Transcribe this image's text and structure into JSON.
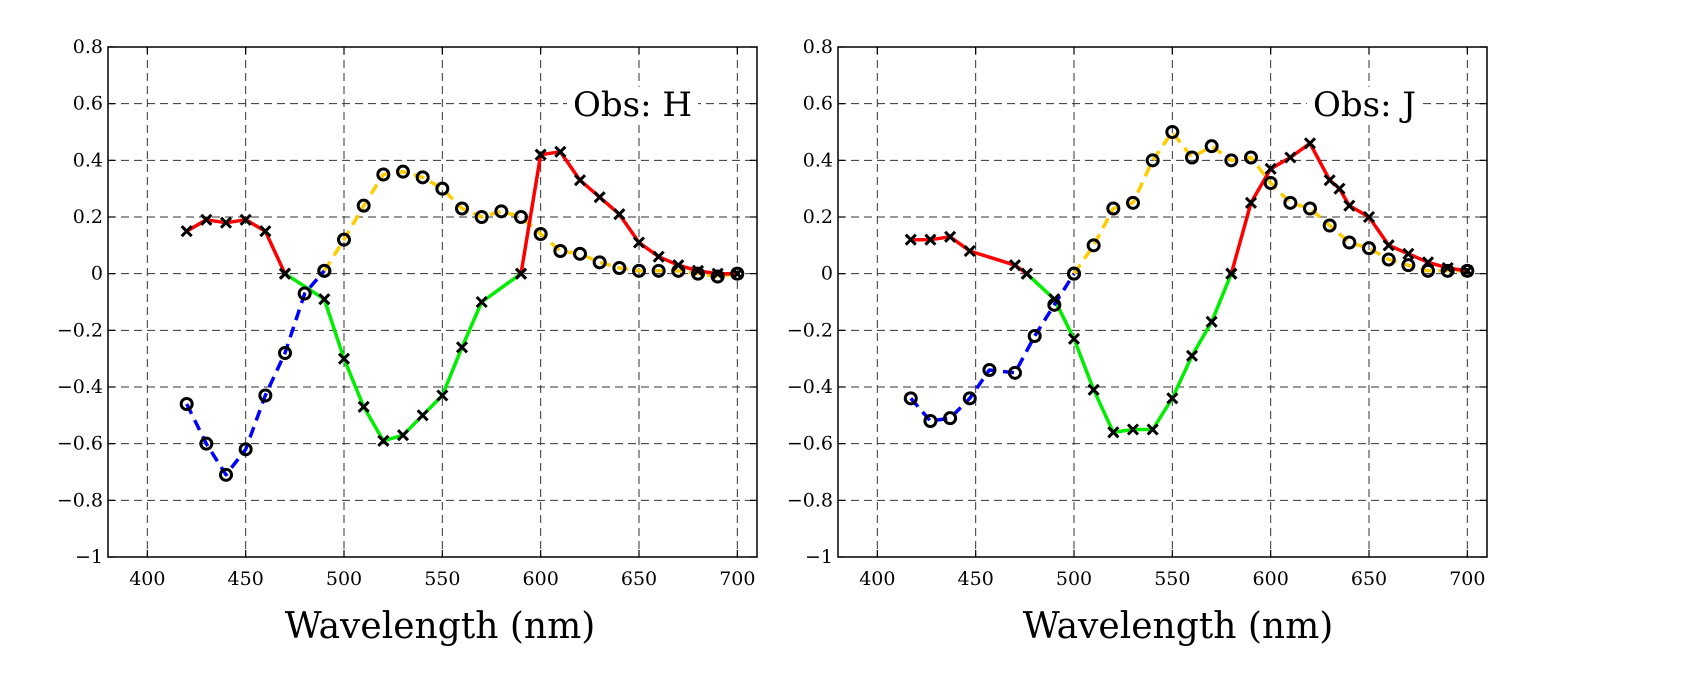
{
  "chart_data": [
    {
      "type": "line",
      "annotation": "Obs: H",
      "xlabel": "Wavelength (nm)",
      "ylabel": "",
      "xlim": [
        380,
        710
      ],
      "ylim": [
        -1,
        0.8
      ],
      "xticks": [
        400,
        450,
        500,
        550,
        600,
        650,
        700
      ],
      "yticks": [
        -1,
        -0.8,
        -0.6,
        -0.4,
        -0.2,
        0,
        0.2,
        0.4,
        0.6,
        0.8
      ],
      "xtick_labels": [
        "400",
        "450",
        "500",
        "550",
        "600",
        "650",
        "700"
      ],
      "ytick_labels": [
        "−1",
        "−0.8",
        "−0.6",
        "−0.4",
        "−0.2",
        "0",
        "0.2",
        "0.4",
        "0.6",
        "0.8"
      ],
      "grid": true,
      "series": [
        {
          "color": "#ff0000",
          "style": "solid",
          "marker": "x",
          "x": [
            420,
            430,
            440,
            450,
            460,
            470
          ],
          "y": [
            0.15,
            0.19,
            0.18,
            0.19,
            0.15,
            0.0
          ]
        },
        {
          "color": "#00ee00",
          "style": "solid",
          "marker": "x",
          "x": [
            470,
            490,
            500,
            510,
            520,
            530,
            540,
            550,
            560,
            570,
            590
          ],
          "y": [
            0.0,
            -0.09,
            -0.3,
            -0.47,
            -0.59,
            -0.57,
            -0.5,
            -0.43,
            -0.26,
            -0.1,
            0.0
          ]
        },
        {
          "color": "#0000ff",
          "style": "dashed",
          "marker": "o",
          "x": [
            420,
            430,
            440,
            450,
            460,
            470,
            480,
            490
          ],
          "y": [
            -0.46,
            -0.6,
            -0.71,
            -0.62,
            -0.43,
            -0.28,
            -0.07,
            0.01
          ]
        },
        {
          "color": "#ffcc00",
          "style": "dashed",
          "marker": "o",
          "x": [
            490,
            500,
            510,
            520,
            530,
            540,
            550,
            560,
            570,
            580,
            590,
            600,
            610,
            620,
            630,
            640,
            650,
            660,
            670,
            680,
            690,
            700
          ],
          "y": [
            0.01,
            0.12,
            0.24,
            0.35,
            0.36,
            0.34,
            0.3,
            0.23,
            0.2,
            0.22,
            0.2,
            0.14,
            0.08,
            0.07,
            0.04,
            0.02,
            0.01,
            0.01,
            0.01,
            0.0,
            -0.01,
            0.0
          ]
        },
        {
          "color": "#ff0000",
          "style": "solid",
          "marker": "x",
          "x": [
            590,
            600,
            610,
            620,
            630,
            640,
            650,
            660,
            670,
            680,
            690,
            700
          ],
          "y": [
            0.0,
            0.42,
            0.43,
            0.33,
            0.27,
            0.21,
            0.11,
            0.06,
            0.03,
            0.01,
            0.0,
            0.0
          ]
        }
      ]
    },
    {
      "type": "line",
      "annotation": "Obs: J",
      "xlabel": "Wavelength (nm)",
      "ylabel": "",
      "xlim": [
        380,
        710
      ],
      "ylim": [
        -1,
        0.8
      ],
      "xticks": [
        400,
        450,
        500,
        550,
        600,
        650,
        700
      ],
      "yticks": [
        -1,
        -0.8,
        -0.6,
        -0.4,
        -0.2,
        0,
        0.2,
        0.4,
        0.6,
        0.8
      ],
      "xtick_labels": [
        "400",
        "450",
        "500",
        "550",
        "600",
        "650",
        "700"
      ],
      "ytick_labels": [
        "−1",
        "−0.8",
        "−0.6",
        "−0.4",
        "−0.2",
        "0",
        "0.2",
        "0.4",
        "0.6",
        "0.8"
      ],
      "grid": true,
      "series": [
        {
          "color": "#ff0000",
          "style": "solid",
          "marker": "x",
          "x": [
            417,
            427,
            437,
            447,
            470,
            476
          ],
          "y": [
            0.12,
            0.12,
            0.13,
            0.08,
            0.03,
            0.0
          ]
        },
        {
          "color": "#00ee00",
          "style": "solid",
          "marker": "x",
          "x": [
            476,
            490,
            500,
            510,
            520,
            530,
            540,
            550,
            560,
            570,
            580
          ],
          "y": [
            0.0,
            -0.09,
            -0.23,
            -0.41,
            -0.56,
            -0.55,
            -0.55,
            -0.44,
            -0.29,
            -0.17,
            0.0
          ]
        },
        {
          "color": "#0000ff",
          "style": "dashed",
          "marker": "o",
          "x": [
            417,
            427,
            437,
            447,
            457,
            470,
            480,
            490,
            500
          ],
          "y": [
            -0.44,
            -0.52,
            -0.51,
            -0.44,
            -0.34,
            -0.35,
            -0.22,
            -0.11,
            0.0
          ]
        },
        {
          "color": "#ffcc00",
          "style": "dashed",
          "marker": "o",
          "x": [
            500,
            510,
            520,
            530,
            540,
            550,
            560,
            570,
            580,
            590,
            600,
            610,
            620,
            630,
            640,
            650,
            660,
            670,
            680,
            690,
            700
          ],
          "y": [
            0.0,
            0.1,
            0.23,
            0.25,
            0.4,
            0.5,
            0.41,
            0.45,
            0.4,
            0.41,
            0.32,
            0.25,
            0.23,
            0.17,
            0.11,
            0.09,
            0.05,
            0.03,
            0.01,
            0.01,
            0.01
          ]
        },
        {
          "color": "#ff0000",
          "style": "solid",
          "marker": "x",
          "x": [
            580,
            590,
            600,
            610,
            620,
            630,
            635,
            640,
            650,
            660,
            670,
            680,
            690,
            700
          ],
          "y": [
            0.0,
            0.25,
            0.37,
            0.41,
            0.46,
            0.33,
            0.3,
            0.24,
            0.2,
            0.1,
            0.07,
            0.04,
            0.02,
            0.01
          ]
        }
      ]
    }
  ]
}
